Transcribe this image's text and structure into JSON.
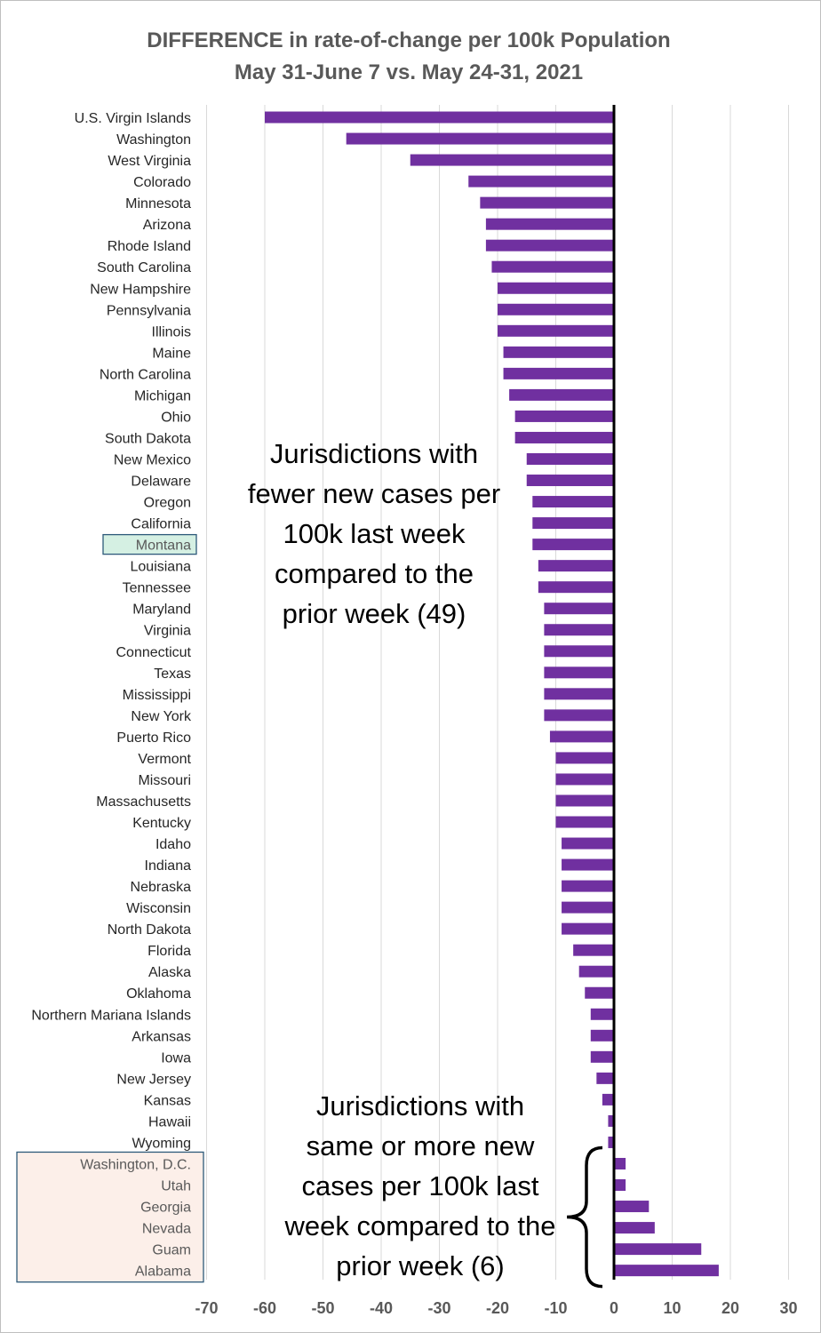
{
  "title_line1": "DIFFERENCE in rate-of-change per 100k Population",
  "title_line2": "May 31-June 7 vs. May 24-31, 2021",
  "annotations": {
    "fewer": "Jurisdictions with fewer new cases per 100k last week compared to the prior week (49)",
    "more": "Jurisdictions with same or more new cases per 100k last week compared to the prior week (6)"
  },
  "colors": {
    "bar": "#7030a0",
    "zero_line": "#000000",
    "grid": "#d9d9d9",
    "highlight_green_fill": "#d5f0e3",
    "highlight_green_border": "#2e5a7a",
    "highlight_pink_fill": "#fcefe9",
    "highlight_pink_border": "#2e5a7a"
  },
  "chart_data": {
    "type": "bar",
    "orientation": "horizontal",
    "title": "DIFFERENCE in rate-of-change per 100k Population May 31-June 7 vs. May 24-31, 2021",
    "xlabel": "",
    "ylabel": "",
    "xlim": [
      -70,
      30
    ],
    "xticks": [
      -70,
      -60,
      -50,
      -40,
      -30,
      -20,
      -10,
      0,
      10,
      20,
      30
    ],
    "grid": true,
    "legend": "none",
    "highlight_green": [
      "Montana"
    ],
    "highlight_pink": [
      "Washington, D.C.",
      "Utah",
      "Georgia",
      "Nevada",
      "Guam",
      "Alabama"
    ],
    "categories": [
      "U.S. Virgin Islands",
      "Washington",
      "West Virginia",
      "Colorado",
      "Minnesota",
      "Arizona",
      "Rhode Island",
      "South Carolina",
      "New Hampshire",
      "Pennsylvania",
      "Illinois",
      "Maine",
      "North Carolina",
      "Michigan",
      "Ohio",
      "South Dakota",
      "New Mexico",
      "Delaware",
      "Oregon",
      "California",
      "Montana",
      "Louisiana",
      "Tennessee",
      "Maryland",
      "Virginia",
      "Connecticut",
      "Texas",
      "Mississippi",
      "New York",
      "Puerto Rico",
      "Vermont",
      "Missouri",
      "Massachusetts",
      "Kentucky",
      "Idaho",
      "Indiana",
      "Nebraska",
      "Wisconsin",
      "North Dakota",
      "Florida",
      "Alaska",
      "Oklahoma",
      "Northern Mariana Islands",
      "Arkansas",
      "Iowa",
      "New Jersey",
      "Kansas",
      "Hawaii",
      "Wyoming",
      "Washington, D.C.",
      "Utah",
      "Georgia",
      "Nevada",
      "Guam",
      "Alabama"
    ],
    "values": [
      -60,
      -46,
      -35,
      -25,
      -23,
      -22,
      -22,
      -21,
      -20,
      -20,
      -20,
      -19,
      -19,
      -18,
      -17,
      -17,
      -15,
      -15,
      -14,
      -14,
      -14,
      -13,
      -13,
      -12,
      -12,
      -12,
      -12,
      -12,
      -12,
      -11,
      -10,
      -10,
      -10,
      -10,
      -9,
      -9,
      -9,
      -9,
      -9,
      -7,
      -6,
      -5,
      -4,
      -4,
      -4,
      -3,
      -2,
      -1,
      -1,
      2,
      2,
      6,
      7,
      15,
      18
    ]
  }
}
